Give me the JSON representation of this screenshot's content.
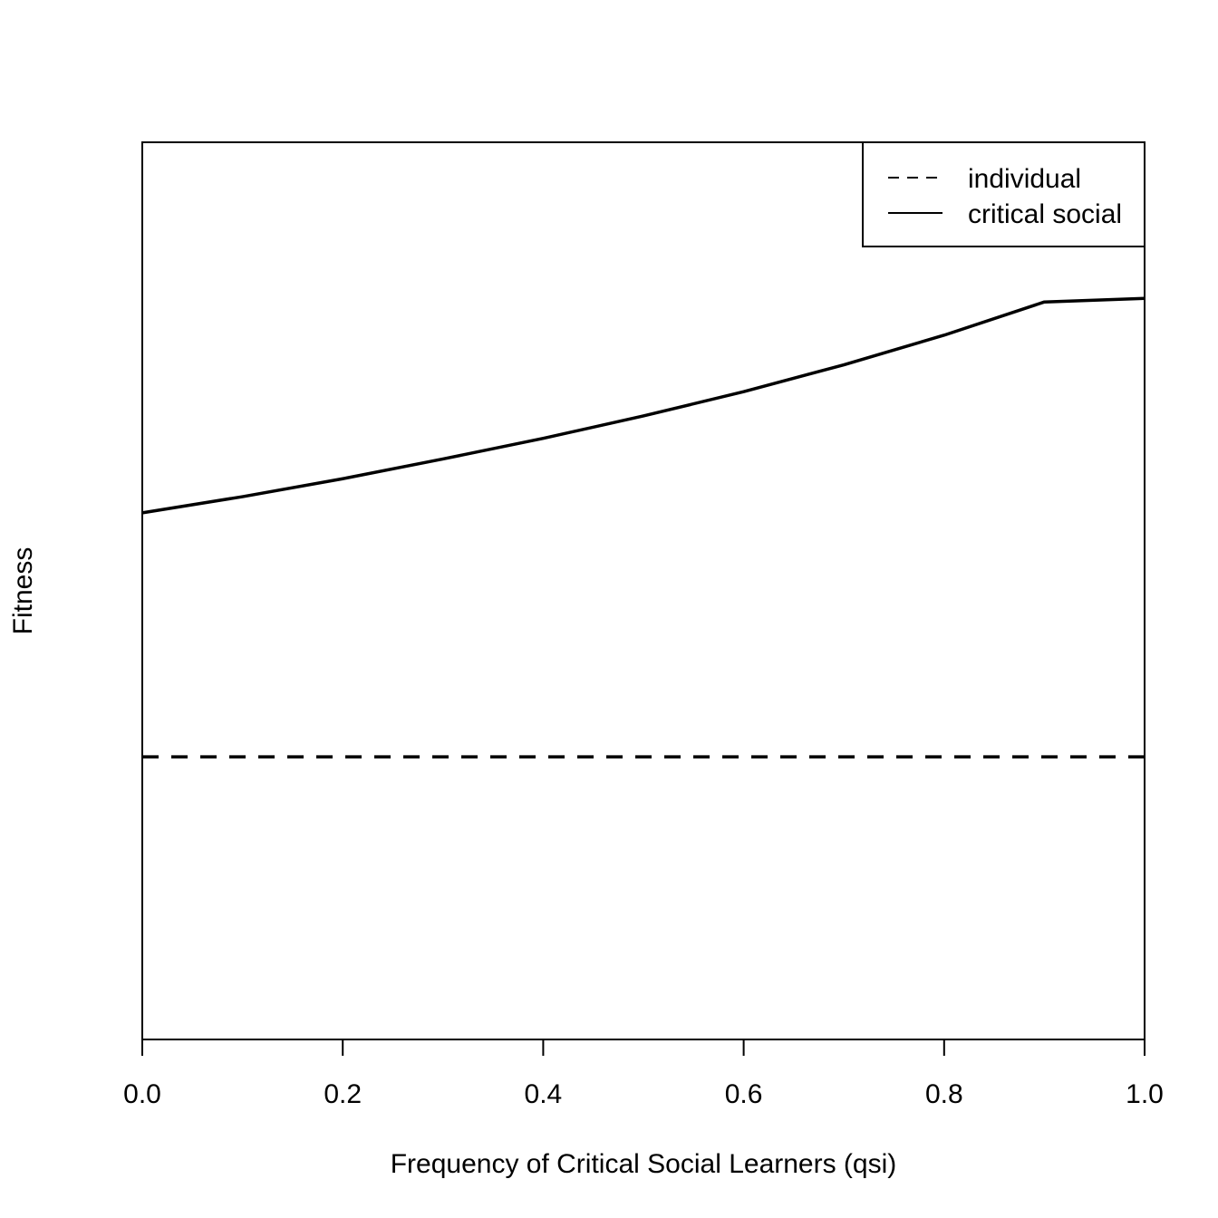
{
  "chart_data": {
    "type": "line",
    "xlabel": "Frequency of Critical Social Learners (qsi)",
    "ylabel": "Fitness",
    "xlim": [
      0,
      1
    ],
    "ylim": [
      0,
      1
    ],
    "x_ticks": [
      "0.0",
      "0.2",
      "0.4",
      "0.6",
      "0.8",
      "1.0"
    ],
    "x_tick_values": [
      0,
      0.2,
      0.4,
      0.6,
      0.8,
      1.0
    ],
    "y_ticks_shown": false,
    "legend_position": "top-right",
    "series": [
      {
        "name": "individual",
        "style": "dashed",
        "x": [
          0,
          0.2,
          0.4,
          0.6,
          0.8,
          1.0
        ],
        "y": [
          0.315,
          0.315,
          0.315,
          0.315,
          0.315,
          0.315
        ]
      },
      {
        "name": "critical social",
        "style": "solid",
        "x": [
          0,
          0.1,
          0.2,
          0.3,
          0.4,
          0.5,
          0.6,
          0.7,
          0.8,
          0.9,
          1.0
        ],
        "y": [
          0.587,
          0.605,
          0.625,
          0.647,
          0.67,
          0.695,
          0.722,
          0.752,
          0.785,
          0.822,
          0.826
        ]
      }
    ]
  }
}
